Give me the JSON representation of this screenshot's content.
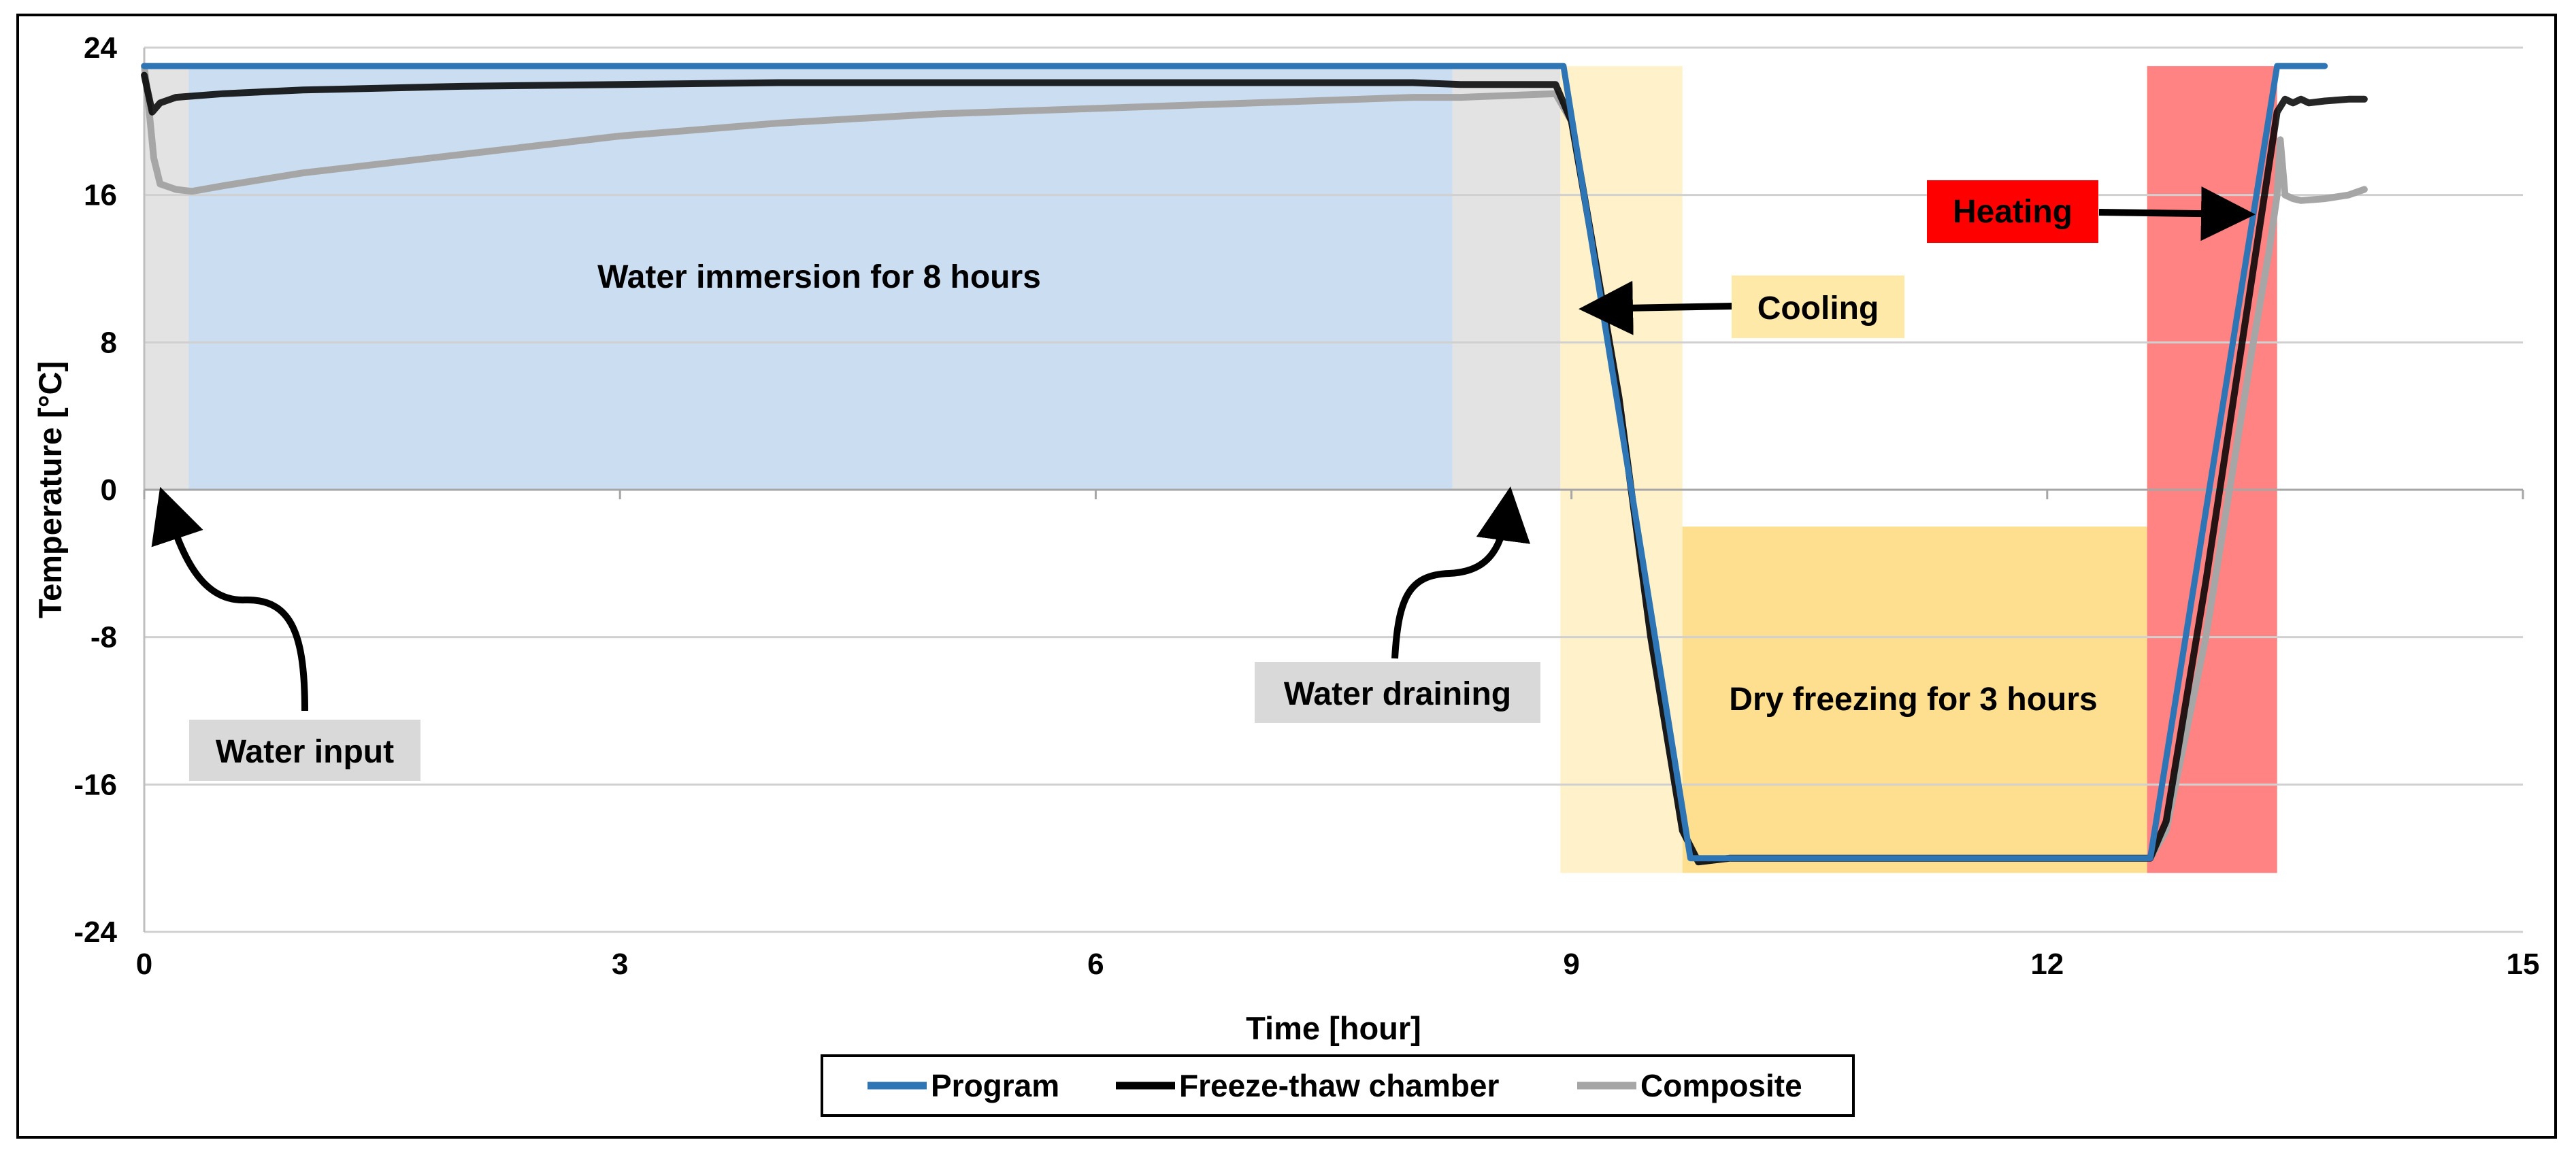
{
  "chart_data": {
    "type": "line",
    "xlabel": "Time [hour]",
    "ylabel": "Temperature [°C]",
    "xlim": [
      0,
      15
    ],
    "ylim": [
      -24,
      24
    ],
    "xticks": [
      0,
      3,
      6,
      9,
      12,
      15
    ],
    "yticks": [
      24,
      16,
      8,
      0,
      -8,
      -16,
      -24
    ],
    "grid": "horizontal",
    "legend_position": "bottom-center",
    "series": [
      {
        "name": "Program",
        "color": "#2e75b6",
        "x": [
          0,
          8.95,
          9.75,
          12.65,
          13.45,
          13.75
        ],
        "y": [
          23.0,
          23.0,
          -20.0,
          -20.0,
          23.0,
          23.0
        ]
      },
      {
        "name": "Freeze-thaw chamber",
        "color": "#000000",
        "x": [
          0,
          0.05,
          0.08,
          0.1,
          0.2,
          0.5,
          1,
          2,
          3,
          4,
          5,
          6,
          7,
          8,
          8.3,
          8.9,
          9.0,
          9.3,
          9.5,
          9.7,
          9.8,
          10,
          11,
          12,
          12.65,
          12.75,
          13.0,
          13.3,
          13.45,
          13.5,
          13.55,
          13.6,
          13.65,
          13.75,
          13.9,
          14.0
        ],
        "y": [
          22.5,
          20.5,
          20.8,
          21.0,
          21.3,
          21.5,
          21.7,
          21.9,
          22.0,
          22.1,
          22.1,
          22.1,
          22.1,
          22.1,
          22.0,
          22.0,
          20.0,
          5.0,
          -8.0,
          -18.5,
          -20.2,
          -20.0,
          -20.0,
          -20.0,
          -20.0,
          -18.0,
          -5.0,
          12.0,
          20.5,
          21.2,
          21.0,
          21.2,
          21.0,
          21.1,
          21.2,
          21.2
        ]
      },
      {
        "name": "Composite",
        "color": "#a6a6a6",
        "x": [
          0,
          0.02,
          0.06,
          0.1,
          0.2,
          0.3,
          0.5,
          1,
          2,
          3,
          4,
          5,
          6,
          7,
          8,
          8.3,
          8.9,
          9.0,
          9.3,
          9.5,
          9.7,
          9.8,
          10,
          11,
          12,
          12.65,
          12.75,
          13.0,
          13.3,
          13.4,
          13.45,
          13.47,
          13.5,
          13.55,
          13.6,
          13.75,
          13.9,
          14.0
        ],
        "y": [
          23.0,
          21.5,
          18.0,
          16.6,
          16.3,
          16.2,
          16.5,
          17.2,
          18.2,
          19.2,
          19.9,
          20.4,
          20.7,
          21.0,
          21.3,
          21.3,
          21.5,
          20.0,
          5.0,
          -8.0,
          -18.5,
          -20.2,
          -20.0,
          -20.0,
          -20.0,
          -20.0,
          -18.5,
          -8.0,
          8.0,
          13.0,
          16.0,
          19.0,
          16.0,
          15.8,
          15.7,
          15.8,
          16.0,
          16.3
        ]
      }
    ],
    "regions": [
      {
        "name": "water-input-region",
        "x0": 0.0,
        "x1": 0.28,
        "y0": 0,
        "y1": 23.0,
        "color": "#d9d9d9",
        "opacity": 0.75
      },
      {
        "name": "water-immersion-region",
        "x0": 0.28,
        "x1": 8.25,
        "y0": 0,
        "y1": 23.0,
        "color": "#a9c6e8",
        "opacity": 0.6
      },
      {
        "name": "water-draining-region",
        "x0": 8.25,
        "x1": 8.93,
        "y0": 0,
        "y1": 23.0,
        "color": "#d9d9d9",
        "opacity": 0.75
      },
      {
        "name": "cooling-region",
        "x0": 8.93,
        "x1": 9.7,
        "y0": -20.8,
        "y1": 23.0,
        "color": "#ffe9a8",
        "opacity": 0.6
      },
      {
        "name": "dry-freezing-region",
        "x0": 9.7,
        "x1": 12.63,
        "y0": -20.8,
        "y1": -2.0,
        "color": "#fdd46a",
        "opacity": 0.75
      },
      {
        "name": "heating-region",
        "x0": 12.63,
        "x1": 13.45,
        "y0": -20.8,
        "y1": 23.0,
        "color": "#ff4040",
        "opacity": 0.65
      }
    ],
    "annotations": [
      {
        "name": "water-immersion-label",
        "text": "Water immersion for 8 hours",
        "x": 4.3,
        "y": 11.5,
        "box": ""
      },
      {
        "name": "water-input-label",
        "text": "Water input",
        "x": 1.0,
        "y": -14.3,
        "box": "#d9d9d9"
      },
      {
        "name": "water-draining-label",
        "text": "Water draining",
        "x": 7.9,
        "y": -11.2,
        "box": "#d9d9d9"
      },
      {
        "name": "cooling-label",
        "text": "Cooling",
        "x": 10.55,
        "y": 9.8,
        "box": "#ffe9a8"
      },
      {
        "name": "dry-freezing-label",
        "text": "Dry freezing for 3 hours",
        "x": 11.15,
        "y": -11.5,
        "box": ""
      },
      {
        "name": "heating-label",
        "text": "Heating",
        "x": 11.8,
        "y": 15.1,
        "box": "#ff0000"
      }
    ]
  }
}
